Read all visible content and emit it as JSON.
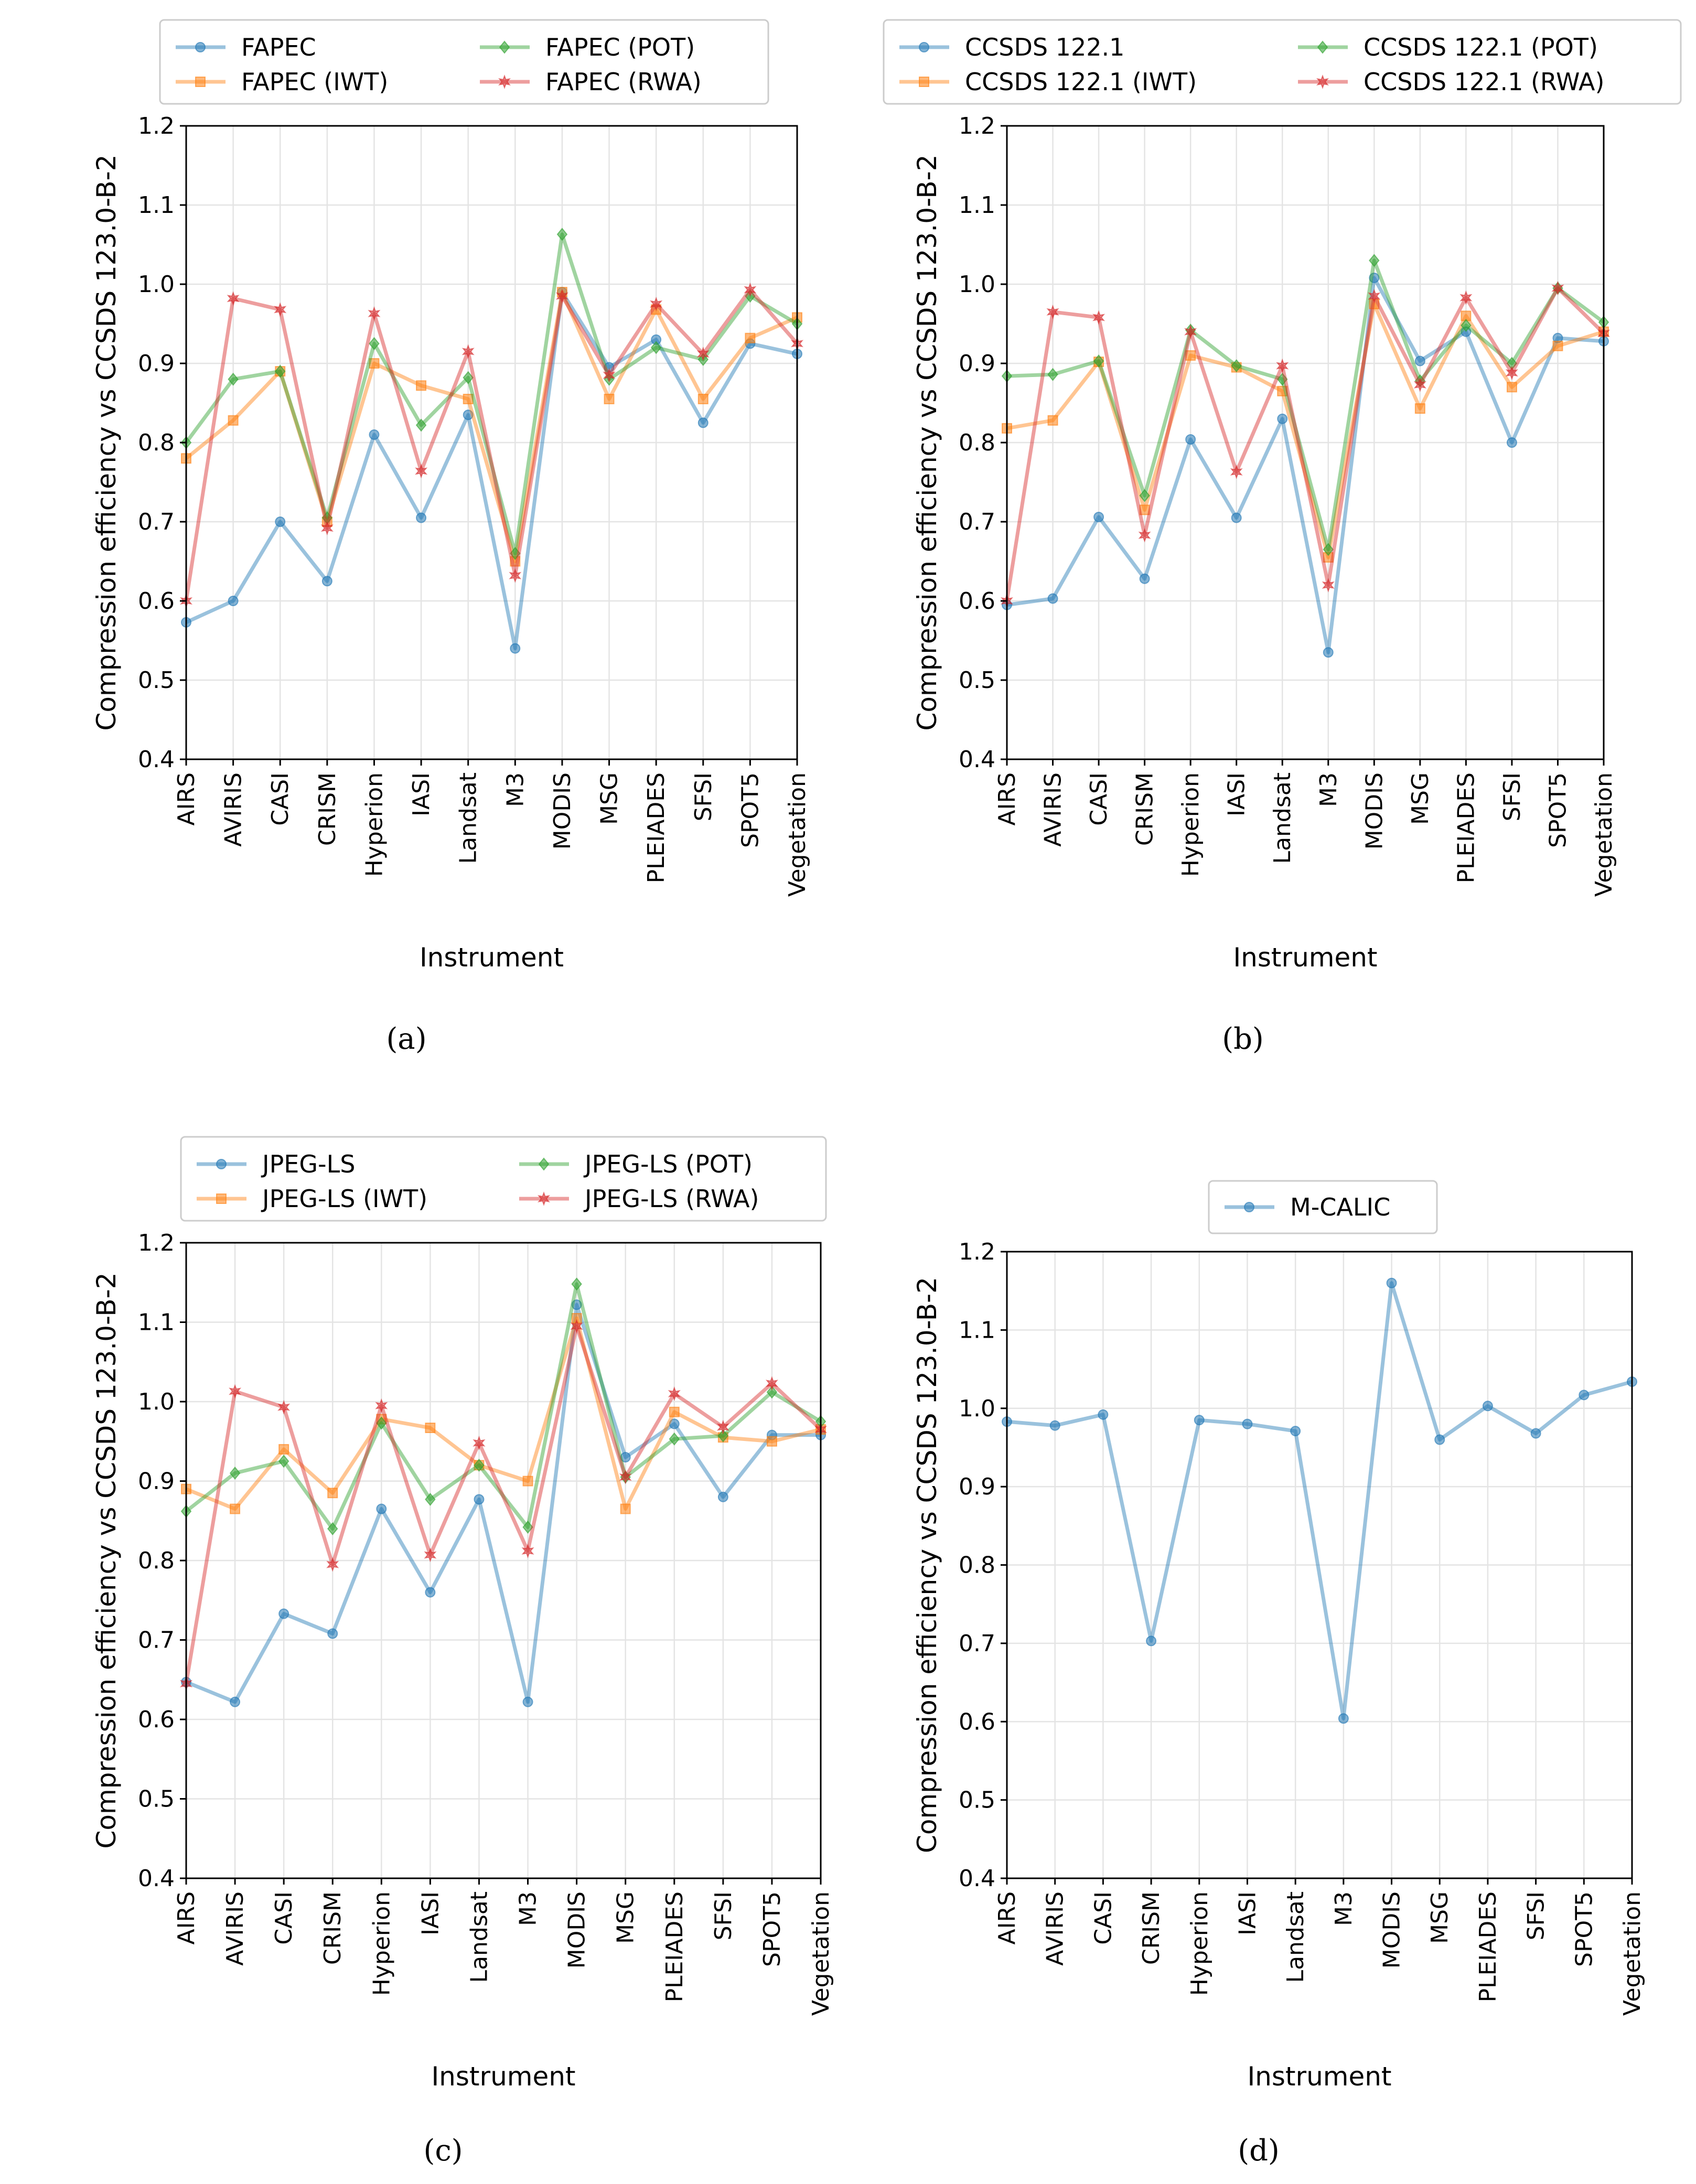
{
  "chart_data": [
    {
      "type": "line",
      "caption": "(a)",
      "xlabel": "Instrument",
      "ylabel": "Compression efficiency vs CCSDS 123.0-B-2",
      "ylim": [
        0.4,
        1.2
      ],
      "yticks": [
        "0.4",
        "0.5",
        "0.6",
        "0.7",
        "0.8",
        "0.9",
        "1.0",
        "1.1",
        "1.2"
      ],
      "grid": true,
      "legend": "top, 2 columns",
      "categories": [
        "AIRS",
        "AVIRIS",
        "CASI",
        "CRISM",
        "Hyperion",
        "IASI",
        "Landsat",
        "M3",
        "MODIS",
        "MSG",
        "PLEIADES",
        "SFSI",
        "SPOT5",
        "Vegetation"
      ],
      "series": [
        {
          "name": "FAPEC",
          "color": "#1f77b4",
          "marker": "circle",
          "values": [
            0.573,
            0.6,
            0.7,
            0.625,
            0.81,
            0.705,
            0.835,
            0.54,
            0.99,
            0.895,
            0.93,
            0.825,
            0.925,
            0.912
          ]
        },
        {
          "name": "FAPEC (IWT)",
          "color": "#ff7f0e",
          "marker": "square",
          "values": [
            0.78,
            0.828,
            0.89,
            0.7,
            0.9,
            0.872,
            0.855,
            0.65,
            0.99,
            0.855,
            0.968,
            0.855,
            0.932,
            0.958
          ]
        },
        {
          "name": "FAPEC (POT)",
          "color": "#2ca02c",
          "marker": "diamond",
          "values": [
            0.8,
            0.88,
            0.89,
            0.705,
            0.925,
            0.822,
            0.882,
            0.66,
            1.063,
            0.88,
            0.92,
            0.905,
            0.985,
            0.95
          ]
        },
        {
          "name": "FAPEC (RWA)",
          "color": "#d62728",
          "marker": "star",
          "values": [
            0.6,
            0.982,
            0.968,
            0.692,
            0.963,
            0.764,
            0.915,
            0.632,
            0.985,
            0.885,
            0.975,
            0.912,
            0.993,
            0.925
          ]
        }
      ]
    },
    {
      "type": "line",
      "caption": "(b)",
      "xlabel": "Instrument",
      "ylabel": "Compression efficiency vs CCSDS 123.0-B-2",
      "ylim": [
        0.4,
        1.2
      ],
      "yticks": [
        "0.4",
        "0.5",
        "0.6",
        "0.7",
        "0.8",
        "0.9",
        "1.0",
        "1.1",
        "1.2"
      ],
      "grid": true,
      "legend": "top, 2 columns",
      "categories": [
        "AIRS",
        "AVIRIS",
        "CASI",
        "CRISM",
        "Hyperion",
        "IASI",
        "Landsat",
        "M3",
        "MODIS",
        "MSG",
        "PLEIADES",
        "SFSI",
        "SPOT5",
        "Vegetation"
      ],
      "series": [
        {
          "name": "CCSDS 122.1",
          "color": "#1f77b4",
          "marker": "circle",
          "values": [
            0.595,
            0.603,
            0.706,
            0.628,
            0.804,
            0.705,
            0.83,
            0.535,
            1.008,
            0.903,
            0.94,
            0.8,
            0.932,
            0.928
          ]
        },
        {
          "name": "CCSDS 122.1 (IWT)",
          "color": "#ff7f0e",
          "marker": "square",
          "values": [
            0.818,
            0.828,
            0.902,
            0.715,
            0.91,
            0.895,
            0.865,
            0.655,
            0.975,
            0.843,
            0.96,
            0.87,
            0.922,
            0.94
          ]
        },
        {
          "name": "CCSDS 122.1 (POT)",
          "color": "#2ca02c",
          "marker": "diamond",
          "values": [
            0.884,
            0.886,
            0.903,
            0.733,
            0.942,
            0.897,
            0.88,
            0.665,
            1.03,
            0.878,
            0.948,
            0.9,
            0.995,
            0.952
          ]
        },
        {
          "name": "CCSDS 122.1 (RWA)",
          "color": "#d62728",
          "marker": "star",
          "values": [
            0.6,
            0.965,
            0.958,
            0.683,
            0.94,
            0.763,
            0.897,
            0.62,
            0.985,
            0.873,
            0.983,
            0.888,
            0.995,
            0.938
          ]
        }
      ]
    },
    {
      "type": "line",
      "caption": "(c)",
      "xlabel": "Instrument",
      "ylabel": "Compression efficiency vs CCSDS 123.0-B-2",
      "ylim": [
        0.4,
        1.2
      ],
      "yticks": [
        "0.4",
        "0.5",
        "0.6",
        "0.7",
        "0.8",
        "0.9",
        "1.0",
        "1.1",
        "1.2"
      ],
      "grid": true,
      "legend": "top, 2 columns",
      "categories": [
        "AIRS",
        "AVIRIS",
        "CASI",
        "CRISM",
        "Hyperion",
        "IASI",
        "Landsat",
        "M3",
        "MODIS",
        "MSG",
        "PLEIADES",
        "SFSI",
        "SPOT5",
        "Vegetation"
      ],
      "series": [
        {
          "name": "JPEG-LS",
          "color": "#1f77b4",
          "marker": "circle",
          "values": [
            0.647,
            0.622,
            0.733,
            0.708,
            0.865,
            0.76,
            0.877,
            0.622,
            1.122,
            0.93,
            0.972,
            0.88,
            0.958,
            0.958
          ]
        },
        {
          "name": "JPEG-LS (IWT)",
          "color": "#ff7f0e",
          "marker": "square",
          "values": [
            0.89,
            0.865,
            0.94,
            0.885,
            0.978,
            0.967,
            0.92,
            0.9,
            1.105,
            0.865,
            0.987,
            0.955,
            0.95,
            0.965
          ]
        },
        {
          "name": "JPEG-LS (POT)",
          "color": "#2ca02c",
          "marker": "diamond",
          "values": [
            0.862,
            0.91,
            0.925,
            0.84,
            0.973,
            0.877,
            0.92,
            0.842,
            1.148,
            0.905,
            0.953,
            0.957,
            1.012,
            0.975
          ]
        },
        {
          "name": "JPEG-LS (RWA)",
          "color": "#d62728",
          "marker": "star",
          "values": [
            0.645,
            1.013,
            0.993,
            0.795,
            0.995,
            0.807,
            0.948,
            0.812,
            1.095,
            0.905,
            1.01,
            0.968,
            1.023,
            0.965
          ]
        }
      ]
    },
    {
      "type": "line",
      "caption": "(d)",
      "xlabel": "Instrument",
      "ylabel": "Compression efficiency vs CCSDS 123.0-B-2",
      "ylim": [
        0.4,
        1.2
      ],
      "yticks": [
        "0.4",
        "0.5",
        "0.6",
        "0.7",
        "0.8",
        "0.9",
        "1.0",
        "1.1",
        "1.2"
      ],
      "grid": true,
      "legend": "top, 1 column",
      "categories": [
        "AIRS",
        "AVIRIS",
        "CASI",
        "CRISM",
        "Hyperion",
        "IASI",
        "Landsat",
        "M3",
        "MODIS",
        "MSG",
        "PLEIADES",
        "SFSI",
        "SPOT5",
        "Vegetation"
      ],
      "series": [
        {
          "name": "M-CALIC",
          "color": "#1f77b4",
          "marker": "circle",
          "values": [
            0.983,
            0.978,
            0.992,
            0.703,
            0.985,
            0.98,
            0.971,
            0.604,
            1.16,
            0.96,
            1.003,
            0.968,
            1.017,
            1.034
          ]
        }
      ]
    }
  ]
}
